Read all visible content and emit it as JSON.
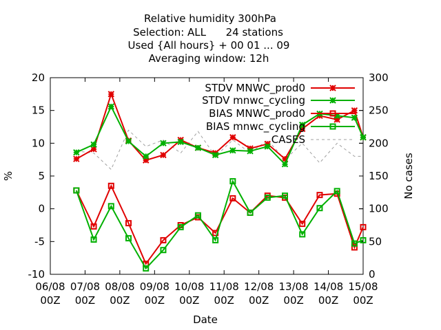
{
  "chart_data": {
    "type": "line",
    "title_lines": [
      "Relative humidity 300hPa",
      "Selection: ALL      24 stations",
      "Used {All hours} + 00 01 ... 09",
      "Averaging window: 12h"
    ],
    "xlabel": "Date",
    "ylabel": "%",
    "y2label": "No cases",
    "ylim": [
      -10,
      20
    ],
    "y2lim": [
      0,
      300
    ],
    "xlim": [
      0,
      9
    ],
    "yticks": [
      "-10",
      "-5",
      "0",
      "5",
      "10",
      "15",
      "20"
    ],
    "y2ticks": [
      "0",
      "50",
      "100",
      "150",
      "200",
      "250",
      "300"
    ],
    "xticks": [
      {
        "l1": "06/08",
        "l2": "00Z"
      },
      {
        "l1": "07/08",
        "l2": "00Z"
      },
      {
        "l1": "08/08",
        "l2": "00Z"
      },
      {
        "l1": "09/08",
        "l2": "00Z"
      },
      {
        "l1": "10/08",
        "l2": "00Z"
      },
      {
        "l1": "11/08",
        "l2": "00Z"
      },
      {
        "l1": "12/08",
        "l2": "00Z"
      },
      {
        "l1": "13/08",
        "l2": "00Z"
      },
      {
        "l1": "14/08",
        "l2": "00Z"
      },
      {
        "l1": "15/08",
        "l2": "00Z"
      }
    ],
    "x_day_offset": [
      0.75,
      1.25,
      1.75,
      2.25,
      2.75,
      3.25,
      3.75,
      4.25,
      4.75,
      5.25,
      5.75,
      6.25,
      6.75,
      7.25,
      7.75,
      8.25,
      8.75,
      9.0
    ],
    "legend_position": "top-right",
    "grid": false,
    "series": [
      {
        "name": "STDV MNWC_prod0",
        "color": "#e00000",
        "marker": "x",
        "values": [
          7.6,
          9.1,
          17.5,
          10.4,
          7.4,
          8.2,
          10.5,
          9.3,
          8.5,
          10.9,
          9.2,
          9.9,
          7.6,
          12.2,
          14.2,
          13.6,
          15.0,
          10.9
        ]
      },
      {
        "name": "STDV mnwc_cycling",
        "color": "#00b000",
        "marker": "x",
        "values": [
          8.6,
          9.8,
          15.6,
          10.3,
          8.0,
          10.0,
          10.2,
          9.3,
          8.2,
          8.9,
          8.8,
          9.5,
          6.8,
          12.8,
          14.5,
          14.2,
          13.9,
          10.9
        ]
      },
      {
        "name": "BIAS MNWC_prod0",
        "color": "#e00000",
        "marker": "square",
        "values": [
          2.8,
          -2.7,
          3.5,
          -2.2,
          -8.4,
          -4.8,
          -2.5,
          -1.3,
          -3.7,
          1.6,
          -0.6,
          2.0,
          1.7,
          -2.3,
          2.1,
          2.3,
          -5.9,
          -2.8
        ]
      },
      {
        "name": "BIAS mnwc_cycling",
        "color": "#00b000",
        "marker": "square",
        "values": [
          2.8,
          -4.7,
          0.4,
          -4.5,
          -9.1,
          -6.3,
          -2.8,
          -1.0,
          -4.8,
          4.2,
          -0.6,
          1.7,
          2.0,
          -3.9,
          0.1,
          2.7,
          -5.3,
          -4.8
        ]
      },
      {
        "name": "CASES",
        "color": "#a0a0a0",
        "marker": "none",
        "axis": "y2",
        "dashed": true,
        "values": [
          188,
          185,
          160,
          220,
          195,
          205,
          185,
          218,
          180,
          205,
          185,
          205,
          175,
          200,
          170,
          200,
          180,
          180
        ]
      }
    ]
  }
}
